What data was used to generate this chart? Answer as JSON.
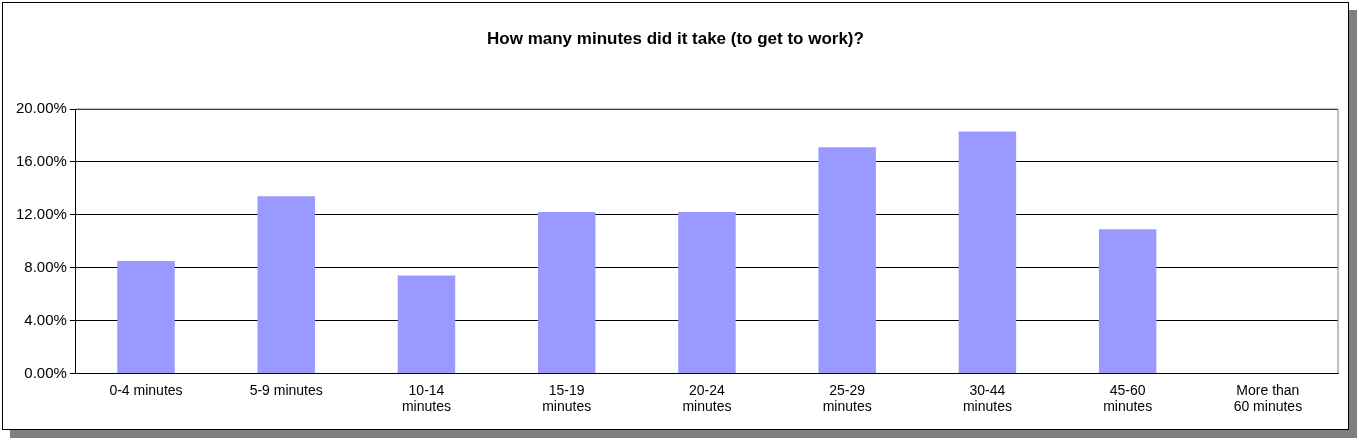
{
  "chart_data": {
    "type": "bar",
    "title": "How many minutes did it take (to get to work)?",
    "categories": [
      "0-4 minutes",
      "5-9 minutes",
      "10-14 minutes",
      "15-19 minutes",
      "20-24 minutes",
      "25-29 minutes",
      "30-44 minutes",
      "45-60 minutes",
      "More than 60 minutes"
    ],
    "values": [
      8.5,
      13.4,
      7.4,
      12.2,
      12.2,
      17.1,
      18.3,
      10.9,
      0
    ],
    "color": "#9999ff",
    "ylim": [
      0,
      20
    ],
    "yticks": [
      {
        "value": 0,
        "label": "0.00%"
      },
      {
        "value": 4,
        "label": "4.00%"
      },
      {
        "value": 8,
        "label": "8.00%"
      },
      {
        "value": 12,
        "label": "12.00%"
      },
      {
        "value": 16,
        "label": "16.00%"
      },
      {
        "value": 20,
        "label": "20.00%"
      }
    ],
    "grid": "y",
    "legend": false
  }
}
